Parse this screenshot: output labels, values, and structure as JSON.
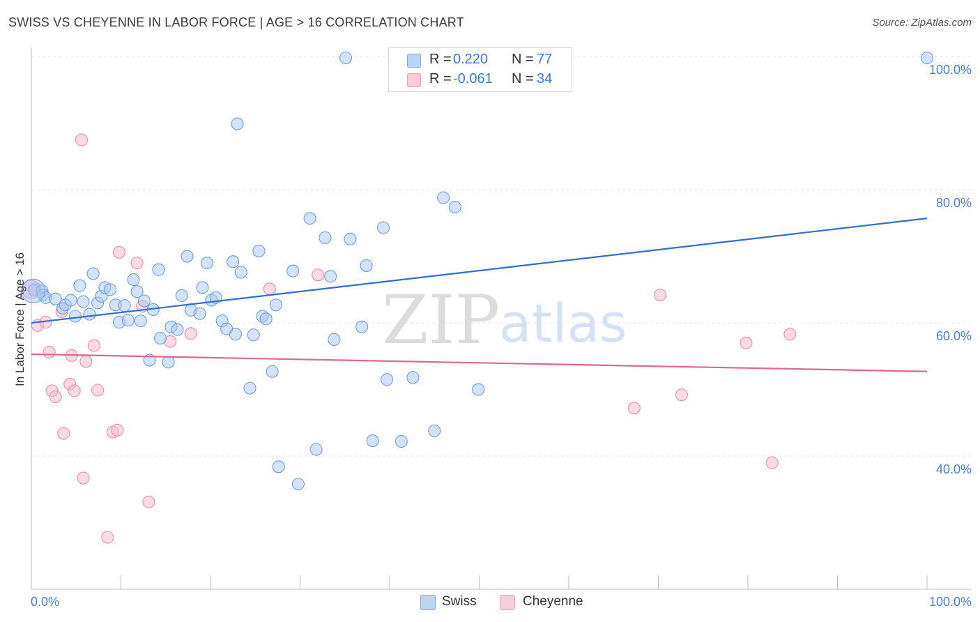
{
  "title": "SWISS VS CHEYENNE IN LABOR FORCE | AGE > 16 CORRELATION CHART",
  "source": "Source: ZipAtlas.com",
  "watermark": {
    "zip": "ZIP",
    "atlas": "atlas"
  },
  "legend": {
    "rows": [
      {
        "r_label": "R =",
        "r_value": "0.220",
        "n_label": "N =",
        "n_value": "77"
      },
      {
        "r_label": "R =",
        "r_value": "-0.061",
        "n_label": "N =",
        "n_value": "34"
      }
    ]
  },
  "bottom_legend": {
    "swiss": "Swiss",
    "cheyenne": "Cheyenne"
  },
  "colors": {
    "swiss_fill": "#a9c8f0",
    "swiss_stroke": "#6f9fe0",
    "swiss_line": "#2f6fd1",
    "cheyenne_fill": "#f6bcd0",
    "cheyenne_stroke": "#ea8fb0",
    "cheyenne_line": "#e2678f",
    "tick": "#4a7fd0",
    "grid": "#e3e3e3"
  },
  "chart_data": {
    "type": "scatter",
    "title": "SWISS VS CHEYENNE IN LABOR FORCE | AGE > 16 CORRELATION CHART",
    "xlabel": "",
    "ylabel": "In Labor Force | Age > 16",
    "xlim": [
      0,
      100
    ],
    "ylim": [
      20,
      102
    ],
    "x_tick_labels": [
      "0.0%",
      "100.0%"
    ],
    "y_ticks": [
      40,
      60,
      80,
      100
    ],
    "y_tick_labels": [
      "40.0%",
      "60.0%",
      "80.0%",
      "100.0%"
    ],
    "grid": true,
    "legend_position": "top-center",
    "series": [
      {
        "name": "Swiss",
        "points": [
          [
            0.3,
            64.9
          ],
          [
            1.2,
            64.8
          ],
          [
            1.3,
            64.2
          ],
          [
            1.6,
            63.8
          ],
          [
            2.7,
            63.6
          ],
          [
            3.5,
            62.2
          ],
          [
            3.8,
            62.7
          ],
          [
            4.4,
            63.4
          ],
          [
            4.9,
            61.0
          ],
          [
            5.4,
            65.6
          ],
          [
            5.8,
            63.2
          ],
          [
            6.5,
            61.3
          ],
          [
            6.9,
            67.4
          ],
          [
            7.4,
            63.0
          ],
          [
            7.8,
            64.0
          ],
          [
            8.2,
            65.3
          ],
          [
            8.8,
            65.0
          ],
          [
            9.4,
            62.7
          ],
          [
            9.8,
            60.1
          ],
          [
            10.4,
            62.6
          ],
          [
            10.8,
            60.4
          ],
          [
            11.4,
            66.5
          ],
          [
            11.8,
            64.7
          ],
          [
            12.2,
            60.3
          ],
          [
            12.6,
            63.3
          ],
          [
            13.2,
            54.4
          ],
          [
            13.6,
            62.0
          ],
          [
            14.2,
            68.0
          ],
          [
            14.4,
            57.7
          ],
          [
            15.3,
            54.1
          ],
          [
            15.6,
            59.4
          ],
          [
            16.3,
            59.0
          ],
          [
            16.8,
            64.1
          ],
          [
            17.4,
            70.0
          ],
          [
            17.8,
            61.9
          ],
          [
            18.8,
            61.4
          ],
          [
            19.1,
            65.3
          ],
          [
            19.6,
            69.0
          ],
          [
            20.1,
            63.4
          ],
          [
            20.6,
            63.8
          ],
          [
            21.3,
            60.3
          ],
          [
            21.8,
            59.1
          ],
          [
            22.5,
            69.2
          ],
          [
            22.8,
            58.3
          ],
          [
            23.0,
            89.9
          ],
          [
            23.4,
            67.6
          ],
          [
            24.4,
            50.2
          ],
          [
            24.8,
            58.2
          ],
          [
            25.4,
            70.8
          ],
          [
            25.8,
            61.0
          ],
          [
            26.2,
            60.6
          ],
          [
            26.9,
            52.7
          ],
          [
            27.3,
            62.7
          ],
          [
            27.6,
            38.4
          ],
          [
            29.2,
            67.8
          ],
          [
            29.8,
            35.8
          ],
          [
            31.1,
            75.7
          ],
          [
            31.8,
            41.0
          ],
          [
            32.8,
            72.8
          ],
          [
            33.4,
            67.0
          ],
          [
            33.8,
            57.5
          ],
          [
            35.1,
            99.8
          ],
          [
            35.6,
            72.6
          ],
          [
            36.9,
            59.4
          ],
          [
            37.4,
            68.6
          ],
          [
            38.1,
            42.3
          ],
          [
            39.3,
            74.3
          ],
          [
            39.7,
            51.5
          ],
          [
            41.3,
            42.2
          ],
          [
            42.6,
            51.8
          ],
          [
            45.0,
            43.8
          ],
          [
            46.0,
            78.8
          ],
          [
            47.3,
            77.4
          ],
          [
            49.9,
            50.0
          ],
          [
            51.8,
            99.8
          ],
          [
            100.0,
            99.8
          ],
          [
            0.2,
            64.8
          ]
        ]
      },
      {
        "name": "Cheyenne",
        "points": [
          [
            0.5,
            65.1
          ],
          [
            0.7,
            59.6
          ],
          [
            1.6,
            60.1
          ],
          [
            2.0,
            55.6
          ],
          [
            2.3,
            49.8
          ],
          [
            2.7,
            48.9
          ],
          [
            3.4,
            61.7
          ],
          [
            3.6,
            43.4
          ],
          [
            4.3,
            50.8
          ],
          [
            4.5,
            55.1
          ],
          [
            4.8,
            49.8
          ],
          [
            5.6,
            87.5
          ],
          [
            5.8,
            36.7
          ],
          [
            6.1,
            54.2
          ],
          [
            7.0,
            56.6
          ],
          [
            7.4,
            49.9
          ],
          [
            8.5,
            27.8
          ],
          [
            9.1,
            43.6
          ],
          [
            9.6,
            43.9
          ],
          [
            9.8,
            70.6
          ],
          [
            11.8,
            69.0
          ],
          [
            12.4,
            62.5
          ],
          [
            13.1,
            33.1
          ],
          [
            15.5,
            57.2
          ],
          [
            17.8,
            58.4
          ],
          [
            26.6,
            65.1
          ],
          [
            32.0,
            67.2
          ],
          [
            67.3,
            47.2
          ],
          [
            70.2,
            64.2
          ],
          [
            72.6,
            49.2
          ],
          [
            79.8,
            57.0
          ],
          [
            82.7,
            39.0
          ],
          [
            84.7,
            58.3
          ],
          [
            0.0,
            65.0
          ]
        ]
      }
    ],
    "trend_lines": [
      {
        "name": "Swiss",
        "from": [
          0,
          60.0
        ],
        "to": [
          100,
          75.7
        ]
      },
      {
        "name": "Cheyenne",
        "from": [
          0,
          55.3
        ],
        "to": [
          100,
          52.7
        ]
      }
    ]
  }
}
